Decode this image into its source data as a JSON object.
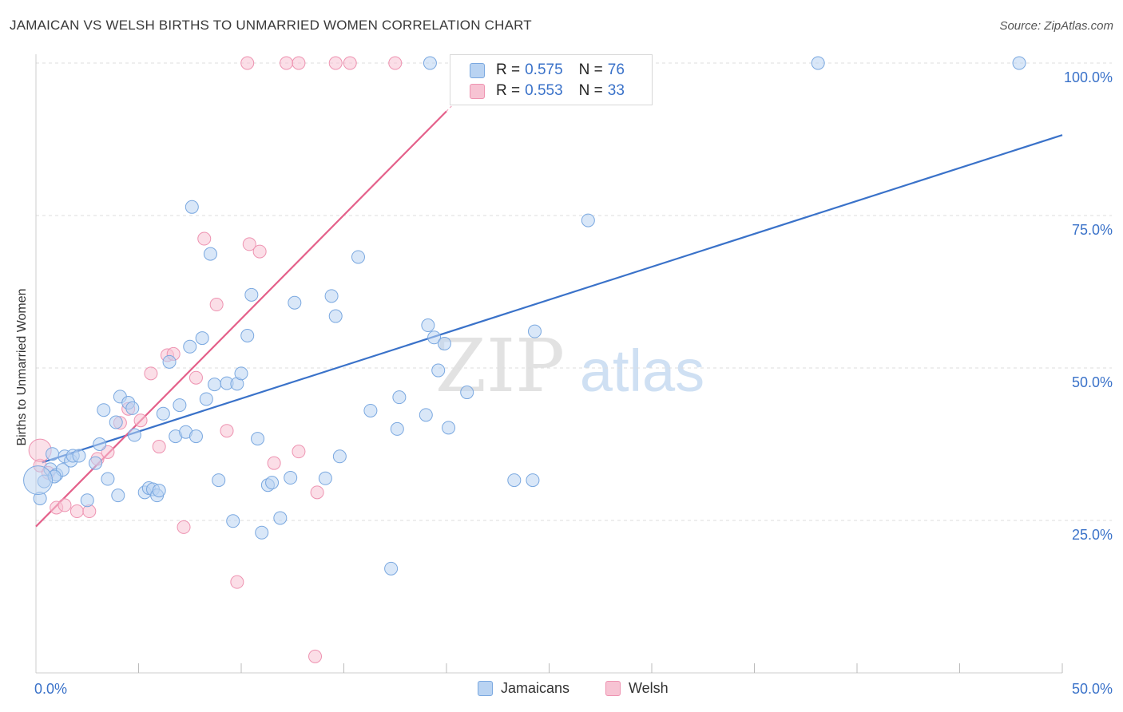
{
  "title": "JAMAICAN VS WELSH BIRTHS TO UNMARRIED WOMEN CORRELATION CHART",
  "source": "Source: ZipAtlas.com",
  "watermark": {
    "zip": "ZIP",
    "atlas": "atlas"
  },
  "colors": {
    "blue": "#3a72c9",
    "blue_fill": "#b9d3f2",
    "blue_stroke": "#7aa8e0",
    "pink": "#e4608a",
    "pink_fill": "#f7c3d3",
    "pink_stroke": "#ee93b1",
    "grid": "#dddddd"
  },
  "legend": {
    "rows": [
      {
        "r_label": "R =",
        "r_value": "0.575",
        "n_label": "N =",
        "n_value": "76"
      },
      {
        "r_label": "R =",
        "r_value": "0.553",
        "n_label": "N =",
        "n_value": "33"
      }
    ]
  },
  "bottom_legend": {
    "series1": "Jamaicans",
    "series2": "Welsh"
  },
  "chart_data": {
    "type": "scatter",
    "title": "JAMAICAN VS WELSH BIRTHS TO UNMARRIED WOMEN CORRELATION CHART",
    "xlabel": "",
    "ylabel": "Births to Unmarried Women",
    "xlim": [
      0,
      50
    ],
    "ylim": [
      0,
      100
    ],
    "x_tick_labels": [
      "0.0%",
      "50.0%"
    ],
    "y_tick_labels": [
      "25.0%",
      "50.0%",
      "75.0%",
      "100.0%"
    ],
    "y_ticks": [
      25,
      50,
      75,
      100
    ],
    "grid": true,
    "series": [
      {
        "name": "Jamaicans",
        "color": "#3a72c9",
        "trendline": {
          "x": [
            0.3,
            50
          ],
          "y": [
            34.5,
            88.2
          ]
        },
        "points": [
          [
            0.2,
            28.6
          ],
          [
            0.4,
            31.4
          ],
          [
            0.7,
            33.4
          ],
          [
            0.8,
            35.9
          ],
          [
            1.0,
            32.5
          ],
          [
            1.3,
            33.3
          ],
          [
            1.4,
            35.5
          ],
          [
            1.7,
            34.8
          ],
          [
            1.8,
            35.6
          ],
          [
            2.1,
            35.6
          ],
          [
            2.5,
            28.3
          ],
          [
            2.9,
            34.4
          ],
          [
            3.1,
            37.5
          ],
          [
            3.5,
            31.8
          ],
          [
            3.3,
            43.1
          ],
          [
            3.9,
            41.1
          ],
          [
            4.0,
            29.1
          ],
          [
            4.1,
            45.3
          ],
          [
            4.5,
            44.3
          ],
          [
            4.7,
            43.4
          ],
          [
            4.8,
            39.0
          ],
          [
            5.3,
            29.6
          ],
          [
            5.5,
            30.3
          ],
          [
            5.7,
            30.1
          ],
          [
            5.9,
            29.1
          ],
          [
            6.0,
            29.9
          ],
          [
            6.2,
            42.5
          ],
          [
            6.5,
            51.0
          ],
          [
            6.8,
            38.8
          ],
          [
            7.0,
            43.9
          ],
          [
            7.3,
            39.5
          ],
          [
            7.5,
            53.5
          ],
          [
            7.6,
            76.4
          ],
          [
            7.8,
            38.8
          ],
          [
            8.1,
            54.9
          ],
          [
            8.3,
            44.9
          ],
          [
            8.5,
            68.7
          ],
          [
            8.7,
            47.3
          ],
          [
            8.9,
            31.6
          ],
          [
            9.3,
            47.5
          ],
          [
            9.6,
            24.9
          ],
          [
            9.8,
            47.4
          ],
          [
            10.0,
            49.1
          ],
          [
            10.3,
            55.3
          ],
          [
            10.5,
            62.0
          ],
          [
            10.8,
            38.4
          ],
          [
            11.0,
            23.0
          ],
          [
            11.3,
            30.8
          ],
          [
            11.5,
            31.2
          ],
          [
            11.9,
            25.4
          ],
          [
            12.4,
            32.0
          ],
          [
            12.6,
            60.7
          ],
          [
            14.1,
            31.9
          ],
          [
            14.4,
            61.8
          ],
          [
            14.6,
            58.5
          ],
          [
            14.8,
            35.5
          ],
          [
            15.7,
            68.2
          ],
          [
            16.3,
            43.0
          ],
          [
            17.3,
            17.1
          ],
          [
            17.6,
            40.0
          ],
          [
            17.7,
            45.2
          ],
          [
            19.0,
            42.3
          ],
          [
            19.1,
            57.0
          ],
          [
            19.4,
            55.0
          ],
          [
            19.6,
            49.6
          ],
          [
            19.9,
            54.0
          ],
          [
            20.1,
            40.2
          ],
          [
            21.0,
            46.0
          ],
          [
            23.3,
            31.6
          ],
          [
            24.2,
            31.6
          ],
          [
            24.3,
            56.0
          ],
          [
            26.9,
            74.2
          ],
          [
            19.2,
            100.0
          ],
          [
            38.1,
            100.0
          ],
          [
            47.9,
            100.0
          ],
          [
            0.9,
            32.2
          ]
        ]
      },
      {
        "name": "Welsh",
        "color": "#e4608a",
        "trendline": {
          "x": [
            0,
            20
          ],
          "y": [
            24.0,
            92.1
          ]
        },
        "points": [
          [
            0.2,
            34.0
          ],
          [
            0.6,
            32.8
          ],
          [
            1.0,
            27.1
          ],
          [
            1.4,
            27.5
          ],
          [
            2.0,
            26.5
          ],
          [
            2.6,
            26.5
          ],
          [
            3.0,
            35.1
          ],
          [
            3.5,
            36.2
          ],
          [
            4.1,
            41.0
          ],
          [
            4.5,
            43.3
          ],
          [
            5.1,
            41.4
          ],
          [
            5.6,
            49.1
          ],
          [
            6.0,
            37.1
          ],
          [
            6.4,
            52.1
          ],
          [
            6.7,
            52.3
          ],
          [
            7.2,
            23.9
          ],
          [
            7.8,
            48.4
          ],
          [
            8.2,
            71.2
          ],
          [
            8.8,
            60.4
          ],
          [
            9.3,
            39.7
          ],
          [
            9.8,
            14.9
          ],
          [
            10.4,
            70.3
          ],
          [
            10.9,
            69.1
          ],
          [
            11.6,
            34.4
          ],
          [
            12.8,
            36.3
          ],
          [
            13.6,
            2.7
          ],
          [
            13.7,
            29.6
          ],
          [
            10.3,
            100.0
          ],
          [
            12.2,
            100.0
          ],
          [
            12.8,
            100.0
          ],
          [
            14.6,
            100.0
          ],
          [
            15.3,
            100.0
          ],
          [
            17.5,
            100.0
          ]
        ]
      }
    ]
  }
}
